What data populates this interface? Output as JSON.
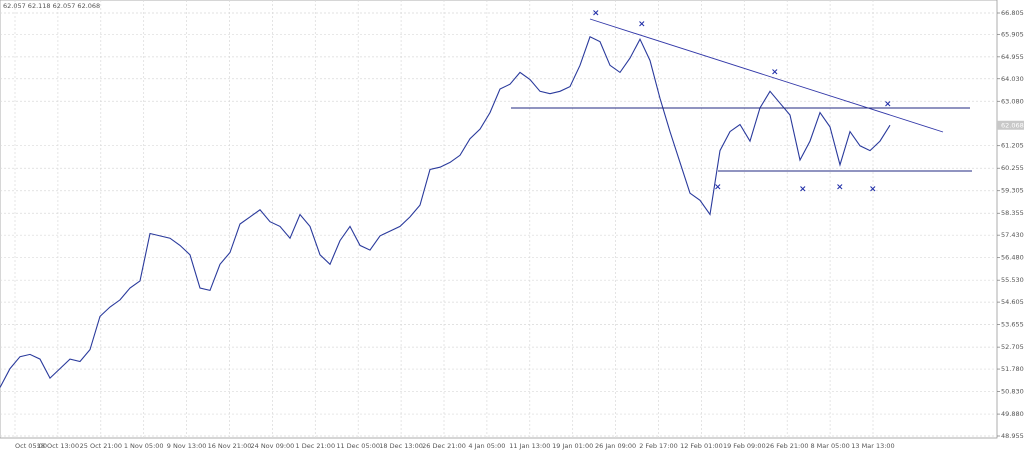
{
  "chart_data": {
    "type": "line",
    "ohlc_caption": "62.057 62.118 62.057 62.068",
    "current_price": {
      "value": 62.068,
      "label": "62.068"
    },
    "xtick_labels": [
      "Oct 05:00",
      "18 Oct 13:00",
      "25 Oct 21:00",
      "1 Nov 05:00",
      "9 Nov 13:00",
      "16 Nov 21:00",
      "24 Nov 09:00",
      "1 Dec 21:00",
      "11 Dec 05:00",
      "18 Dec 13:00",
      "26 Dec 21:00",
      "4 Jan 05:00",
      "11 Jan 13:00",
      "19 Jan 01:00",
      "26 Jan 09:00",
      "2 Feb 17:00",
      "12 Feb 01:00",
      "19 Feb 09:00",
      "26 Feb 21:00",
      "8 Mar 05:00",
      "13 Mar 13:00"
    ],
    "series": [
      {
        "color": "#2a3a9c",
        "values": [
          51.0,
          51.8,
          52.3,
          52.4,
          52.2,
          51.4,
          51.8,
          52.2,
          52.1,
          52.6,
          54.0,
          54.4,
          54.7,
          55.2,
          55.5,
          57.5,
          57.4,
          57.3,
          57.0,
          56.6,
          55.2,
          55.1,
          56.2,
          56.7,
          57.9,
          58.2,
          58.5,
          58.0,
          57.8,
          57.3,
          58.3,
          57.8,
          56.6,
          56.2,
          57.2,
          57.8,
          57.0,
          56.8,
          57.4,
          57.6,
          57.8,
          58.2,
          58.7,
          60.2,
          60.3,
          60.5,
          60.8,
          61.5,
          61.9,
          62.6,
          63.6,
          63.8,
          64.3,
          64.0,
          63.5,
          63.4,
          63.5,
          63.7,
          64.6,
          65.8,
          65.6,
          64.6,
          64.3,
          64.9,
          65.7,
          64.8,
          63.2,
          61.8,
          60.5,
          59.2,
          58.9,
          58.3,
          61.0,
          61.8,
          62.1,
          61.4,
          62.8,
          63.5,
          63.0,
          62.5,
          60.6,
          61.4,
          62.6,
          62.0,
          60.4,
          61.8,
          61.2,
          61.0,
          61.4,
          62.07
        ]
      }
    ],
    "ylim": [
      48.955,
      66.805
    ],
    "yticks": [
      {
        "value": 66.805,
        "label": "66.805"
      },
      {
        "value": 65.905,
        "label": "65.905"
      },
      {
        "value": 64.955,
        "label": "64.955"
      },
      {
        "value": 64.03,
        "label": "64.030"
      },
      {
        "value": 63.08,
        "label": "63.080"
      },
      {
        "value": 61.205,
        "label": "61.205"
      },
      {
        "value": 60.255,
        "label": "60.255"
      },
      {
        "value": 59.305,
        "label": "59.305"
      },
      {
        "value": 58.355,
        "label": "58.355"
      },
      {
        "value": 57.43,
        "label": "57.430"
      },
      {
        "value": 56.48,
        "label": "56.480"
      },
      {
        "value": 55.53,
        "label": "55.530"
      },
      {
        "value": 54.605,
        "label": "54.605"
      },
      {
        "value": 53.655,
        "label": "53.655"
      },
      {
        "value": 52.705,
        "label": "52.705"
      },
      {
        "value": 51.78,
        "label": "51.780"
      },
      {
        "value": 50.83,
        "label": "50.830"
      },
      {
        "value": 49.88,
        "label": "49.880"
      },
      {
        "value": 48.955,
        "label": "48.955"
      }
    ],
    "grid": true
  }
}
